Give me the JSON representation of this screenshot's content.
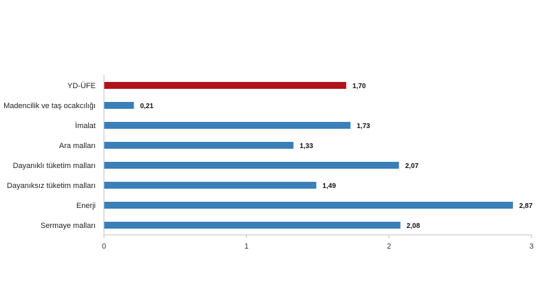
{
  "chart_data": {
    "type": "bar",
    "orientation": "horizontal",
    "categories": [
      "YD-ÜFE",
      "Madencilik ve taş ocakcılığı",
      "İmalat",
      "Ara malları",
      "Dayanıklı tüketim malları",
      "Dayanıksız tüketim malları",
      "Enerji",
      "Sermaye malları"
    ],
    "values": [
      1.7,
      0.21,
      1.73,
      1.33,
      2.07,
      1.49,
      2.87,
      2.08
    ],
    "value_labels": [
      "1,70",
      "0,21",
      "1,73",
      "1,33",
      "2,07",
      "1,49",
      "2,87",
      "2,08"
    ],
    "xlim": [
      0,
      3
    ],
    "x_ticks": [
      0,
      1,
      2,
      3
    ],
    "x_tick_labels": [
      "0",
      "1",
      "2",
      "3"
    ],
    "grid": false,
    "legend": "none",
    "colors": {
      "highlight": "#b0141c",
      "default": "#3a7fb8",
      "axis": "#bfbfbf"
    },
    "highlight_index": 0
  }
}
